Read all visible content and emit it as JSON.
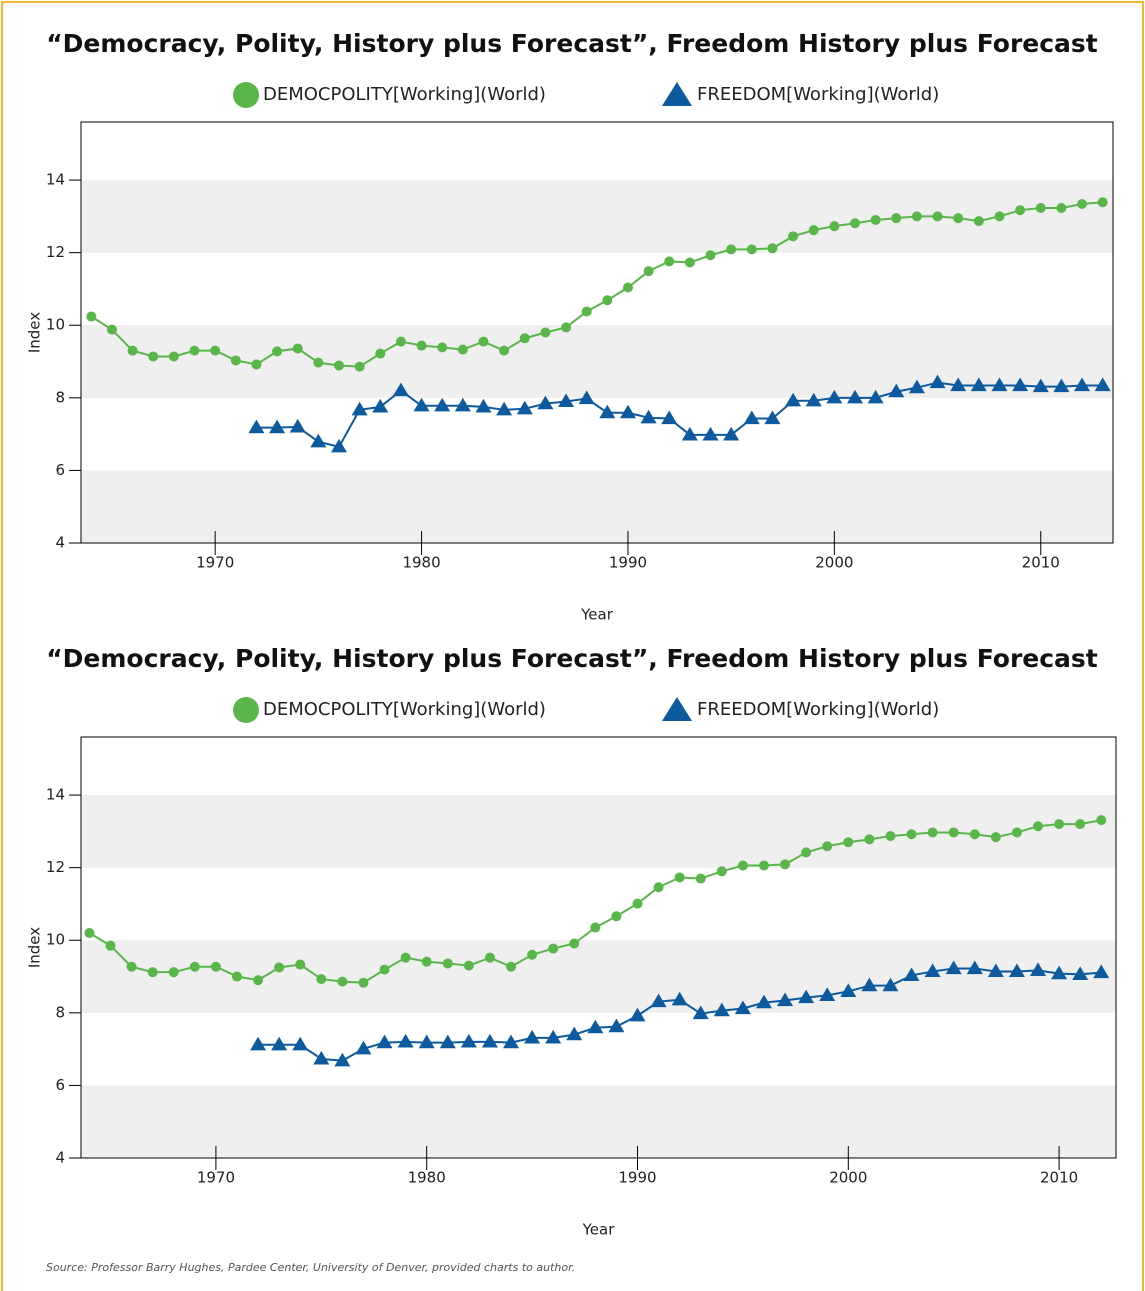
{
  "chart_data": [
    {
      "type": "line",
      "title": "“Democracy, Polity, History plus Forecast”, Freedom History plus Forecast",
      "x_label": "Year",
      "y_label": "Index",
      "xlim": [
        1963.5,
        2013.5
      ],
      "ylim": [
        4,
        15.6
      ],
      "xticks": [
        1970,
        1980,
        1990,
        2000,
        2010
      ],
      "yticks": [
        4,
        6,
        8,
        10,
        12,
        14
      ],
      "banded_grid": true,
      "series": [
        {
          "name": "DEMOCPOLITY[Working](World)",
          "color": "#5ab54b",
          "marker": "circle",
          "x": [
            1964,
            1965,
            1966,
            1967,
            1968,
            1969,
            1970,
            1971,
            1972,
            1973,
            1974,
            1975,
            1976,
            1977,
            1978,
            1979,
            1980,
            1981,
            1982,
            1983,
            1984,
            1985,
            1986,
            1987,
            1988,
            1989,
            1990,
            1991,
            1992,
            1993,
            1994,
            1995,
            1996,
            1997,
            1998,
            1999,
            2000,
            2001,
            2002,
            2003,
            2004,
            2005,
            2006,
            2007,
            2008,
            2009,
            2010,
            2011,
            2012,
            2013
          ],
          "values": [
            10.24,
            9.88,
            9.3,
            9.14,
            9.14,
            9.3,
            9.3,
            9.03,
            8.92,
            9.28,
            9.36,
            8.97,
            8.89,
            8.86,
            9.22,
            9.55,
            9.44,
            9.39,
            9.33,
            9.55,
            9.3,
            9.64,
            9.8,
            9.94,
            10.38,
            10.69,
            11.04,
            11.49,
            11.76,
            11.73,
            11.93,
            12.09,
            12.09,
            12.12,
            12.45,
            12.62,
            12.73,
            12.81,
            12.9,
            12.95,
            13.0,
            13.0,
            12.95,
            12.87,
            13.0,
            13.17,
            13.23,
            13.23,
            13.34,
            13.39
          ]
        },
        {
          "name": "FREEDOM[Working](World)",
          "color": "#0d5a9e",
          "marker": "triangle",
          "x": [
            1972,
            1973,
            1974,
            1975,
            1976,
            1977,
            1978,
            1979,
            1980,
            1981,
            1982,
            1983,
            1984,
            1985,
            1986,
            1987,
            1988,
            1989,
            1990,
            1991,
            1992,
            1993,
            1994,
            1995,
            1996,
            1997,
            1998,
            1999,
            2000,
            2001,
            2002,
            2003,
            2004,
            2005,
            2006,
            2007,
            2008,
            2009,
            2010,
            2011,
            2012,
            2013
          ],
          "values": [
            7.18,
            7.18,
            7.2,
            6.79,
            6.65,
            7.67,
            7.75,
            8.2,
            7.78,
            7.78,
            7.78,
            7.75,
            7.67,
            7.7,
            7.84,
            7.9,
            7.98,
            7.59,
            7.59,
            7.45,
            7.43,
            6.98,
            6.98,
            6.98,
            7.43,
            7.43,
            7.92,
            7.92,
            8.0,
            8.0,
            8.0,
            8.17,
            8.28,
            8.42,
            8.34,
            8.34,
            8.34,
            8.34,
            8.31,
            8.31,
            8.34,
            8.34
          ]
        }
      ]
    },
    {
      "type": "line",
      "title": "“Democracy, Polity, History plus Forecast”, Freedom History plus Forecast",
      "x_label": "Year",
      "y_label": "Index",
      "xlim": [
        1963.6,
        2012.7
      ],
      "ylim": [
        4,
        15.6
      ],
      "xticks": [
        1970,
        1980,
        1990,
        2000,
        2010
      ],
      "yticks": [
        4,
        6,
        8,
        10,
        12,
        14
      ],
      "banded_grid": true,
      "series": [
        {
          "name": "DEMOCPOLITY[Working](World)",
          "color": "#5ab54b",
          "marker": "circle",
          "x": [
            1964,
            1965,
            1966,
            1967,
            1968,
            1969,
            1970,
            1971,
            1972,
            1973,
            1974,
            1975,
            1976,
            1977,
            1978,
            1979,
            1980,
            1981,
            1982,
            1983,
            1984,
            1985,
            1986,
            1987,
            1988,
            1989,
            1990,
            1991,
            1992,
            1993,
            1994,
            1995,
            1996,
            1997,
            1998,
            1999,
            2000,
            2001,
            2002,
            2003,
            2004,
            2005,
            2006,
            2007,
            2008,
            2009,
            2010,
            2011,
            2012
          ],
          "values": [
            10.2,
            9.85,
            9.27,
            9.12,
            9.12,
            9.27,
            9.27,
            9.0,
            8.9,
            9.25,
            9.33,
            8.93,
            8.86,
            8.83,
            9.19,
            9.52,
            9.41,
            9.36,
            9.3,
            9.52,
            9.27,
            9.6,
            9.77,
            9.91,
            10.35,
            10.66,
            11.01,
            11.46,
            11.73,
            11.7,
            11.9,
            12.06,
            12.06,
            12.09,
            12.42,
            12.59,
            12.7,
            12.78,
            12.87,
            12.92,
            12.97,
            12.97,
            12.92,
            12.84,
            12.97,
            13.14,
            13.2,
            13.2,
            13.31
          ]
        },
        {
          "name": "FREEDOM[Working](World)",
          "color": "#0d5a9e",
          "marker": "triangle",
          "x": [
            1972,
            1973,
            1974,
            1975,
            1976,
            1977,
            1978,
            1979,
            1980,
            1981,
            1982,
            1983,
            1984,
            1985,
            1986,
            1987,
            1988,
            1989,
            1990,
            1991,
            1992,
            1993,
            1994,
            1995,
            1996,
            1997,
            1998,
            1999,
            2000,
            2001,
            2002,
            2003,
            2004,
            2005,
            2006,
            2007,
            2008,
            2009,
            2010,
            2011,
            2012
          ],
          "values": [
            7.12,
            7.12,
            7.12,
            6.73,
            6.68,
            7.01,
            7.18,
            7.2,
            7.18,
            7.18,
            7.2,
            7.2,
            7.18,
            7.31,
            7.31,
            7.4,
            7.59,
            7.62,
            7.92,
            8.31,
            8.36,
            7.98,
            8.06,
            8.12,
            8.28,
            8.34,
            8.42,
            8.48,
            8.59,
            8.75,
            8.75,
            9.03,
            9.14,
            9.22,
            9.22,
            9.14,
            9.14,
            9.17,
            9.08,
            9.06,
            9.11
          ]
        }
      ]
    }
  ],
  "source": "Source: Professor Barry Hughes, Pardee Center, University of Denver, provided charts to author."
}
